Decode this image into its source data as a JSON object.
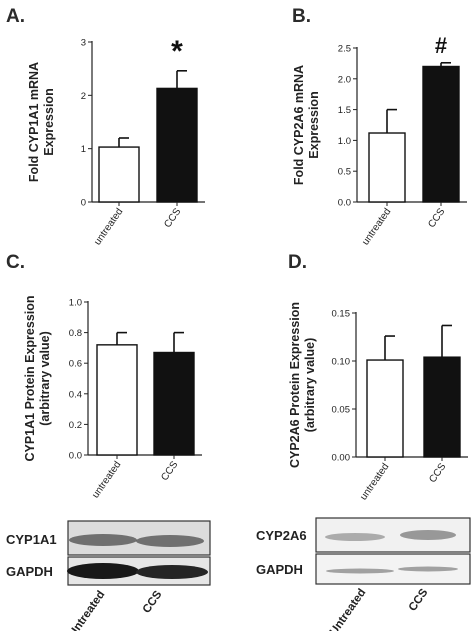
{
  "panels": [
    "A.",
    "B.",
    "C.",
    "D."
  ],
  "chart_data": [
    {
      "id": "A",
      "type": "bar",
      "title": "",
      "ylabel_lines": [
        "Fold CYP1A1 mRNA",
        "Expression"
      ],
      "categories": [
        "untreated",
        "CCS"
      ],
      "values": [
        1.03,
        2.13
      ],
      "errors": [
        0.17,
        0.33
      ],
      "fills": [
        "#ffffff",
        "#111111"
      ],
      "ylim": [
        0,
        3
      ],
      "yticks": [
        "0",
        "1",
        "2",
        "3"
      ],
      "ytick_values": [
        0,
        1,
        2,
        3
      ],
      "significance": [
        "",
        "*"
      ]
    },
    {
      "id": "B",
      "type": "bar",
      "title": "",
      "ylabel_lines": [
        "Fold CYP2A6 mRNA",
        "Expression"
      ],
      "categories": [
        "untreated",
        "CCS"
      ],
      "values": [
        1.12,
        2.2
      ],
      "errors": [
        0.38,
        0.06
      ],
      "fills": [
        "#ffffff",
        "#111111"
      ],
      "ylim": [
        0,
        2.5
      ],
      "yticks": [
        "0.0",
        "0.5",
        "1.0",
        "1.5",
        "2.0",
        "2.5"
      ],
      "ytick_values": [
        0,
        0.5,
        1.0,
        1.5,
        2.0,
        2.5
      ],
      "significance": [
        "",
        "#"
      ]
    },
    {
      "id": "C",
      "type": "bar",
      "title": "",
      "ylabel_lines": [
        "CYP1A1 Protein Expression",
        "(arbitrary value)"
      ],
      "categories": [
        "untreated",
        "CCS"
      ],
      "values": [
        0.72,
        0.67
      ],
      "errors": [
        0.08,
        0.13
      ],
      "fills": [
        "#ffffff",
        "#111111"
      ],
      "ylim": [
        0,
        1.0
      ],
      "yticks": [
        "0.0",
        "0.2",
        "0.4",
        "0.6",
        "0.8",
        "1.0"
      ],
      "ytick_values": [
        0,
        0.2,
        0.4,
        0.6,
        0.8,
        1.0
      ],
      "significance": [
        "",
        ""
      ]
    },
    {
      "id": "D",
      "type": "bar",
      "title": "",
      "ylabel_lines": [
        "CYP2A6 Protein Expression",
        "(arbitrary value)"
      ],
      "categories": [
        "untreated",
        "CCS"
      ],
      "values": [
        0.101,
        0.104
      ],
      "errors": [
        0.025,
        0.033
      ],
      "fills": [
        "#ffffff",
        "#111111"
      ],
      "ylim": [
        0,
        0.15
      ],
      "yticks": [
        "0.00",
        "0.05",
        "0.10",
        "0.15"
      ],
      "ytick_values": [
        0,
        0.05,
        0.1,
        0.15
      ],
      "significance": [
        "",
        ""
      ]
    }
  ],
  "blots": {
    "left": {
      "bands": [
        "CYP1A1",
        "GAPDH"
      ],
      "categories": [
        "Untreated",
        "CCS"
      ]
    },
    "right": {
      "bands": [
        "CYP2A6",
        "GAPDH"
      ],
      "categories": [
        "Untreated",
        "CCS"
      ]
    }
  }
}
